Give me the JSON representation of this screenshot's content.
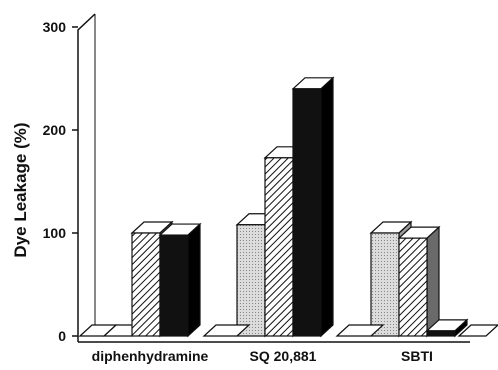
{
  "chart_data": {
    "type": "bar",
    "style": "3d-clustered",
    "title": "",
    "xlabel": "",
    "ylabel": "Dye Leakage (%)",
    "ylim": [
      0,
      300
    ],
    "yticks": [
      "0",
      "100",
      "200",
      "300"
    ],
    "categories": [
      "diphenhydramine",
      "SQ 20,881",
      "SBTI"
    ],
    "series": [
      {
        "fill": "dotted-light",
        "color": "#d8d8d8",
        "values": [
          0,
          108,
          100
        ]
      },
      {
        "fill": "hatched",
        "color": "#ffffff",
        "values": [
          100,
          173,
          95
        ]
      },
      {
        "fill": "solid-black",
        "color": "#111111",
        "values": [
          98,
          240,
          5
        ]
      }
    ],
    "grid": false,
    "legend": "none"
  }
}
